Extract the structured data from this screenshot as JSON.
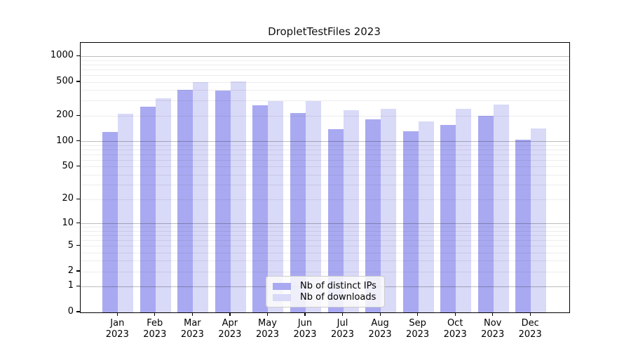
{
  "title": "DropletTestFiles 2023",
  "chart_data": {
    "type": "bar",
    "title": "DropletTestFiles 2023",
    "categories": [
      "Jan 2023",
      "Feb 2023",
      "Mar 2023",
      "Apr 2023",
      "May 2023",
      "Jun 2023",
      "Jul 2023",
      "Aug 2023",
      "Sep 2023",
      "Oct 2023",
      "Nov 2023",
      "Dec 2023"
    ],
    "series": [
      {
        "name": "Nb of distinct IPs",
        "color": "#a9a9f1",
        "values": [
          130,
          255,
          409,
          396,
          266,
          218,
          139,
          181,
          133,
          158,
          199,
          105
        ]
      },
      {
        "name": "Nb of downloads",
        "color": "#d9d9f8",
        "values": [
          211,
          324,
          500,
          512,
          297,
          299,
          235,
          245,
          174,
          245,
          273,
          142
        ]
      }
    ],
    "xlabel": "",
    "ylabel": "",
    "yscale": "log1p (symlog-like: y position proportional to log10(value+1))",
    "yticks": [
      0,
      1,
      2,
      5,
      10,
      20,
      50,
      100,
      200,
      500,
      1000
    ],
    "ylim": [
      0,
      1430
    ],
    "grid": "horizontal; darker lines at 1,10,100,1000; faint minor lines at 2-9 per decade",
    "legend_position": "inside plot, lower center",
    "colors": {
      "bar_distinct_ips": "#a9a9f1",
      "bar_downloads": "#d9d9f8",
      "major_grid": "#c3c3c3",
      "minor_grid": "#ededed",
      "axis": "#000000",
      "background": "#ffffff"
    }
  },
  "legend": {
    "items": [
      {
        "label": "Nb of distinct IPs",
        "color": "#a9a9f1"
      },
      {
        "label": "Nb of downloads",
        "color": "#d9d9f8"
      }
    ]
  }
}
